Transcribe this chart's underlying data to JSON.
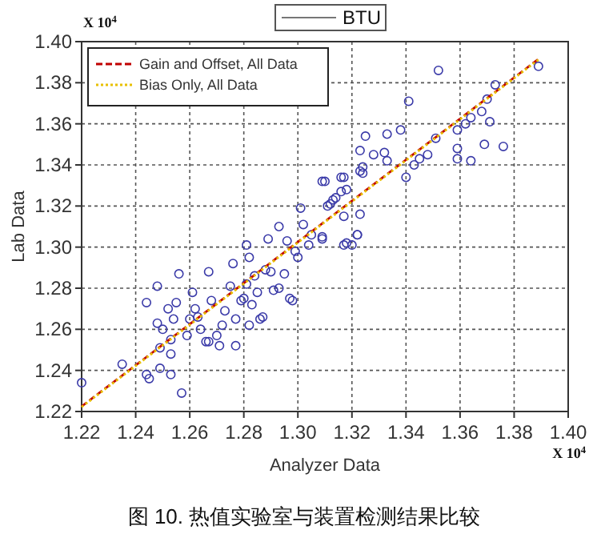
{
  "chart_data": {
    "type": "scatter",
    "title": "BTU",
    "xlabel": "Analyzer Data",
    "ylabel": "Lab Data",
    "annotations": [
      "X 10$^{4}$",
      "X 10$^{4}$",
      "图 10. 热值实验室与装置检测结果比较"
    ],
    "xlim": [
      1.22,
      1.4
    ],
    "ylim": [
      1.22,
      1.4
    ],
    "xticks": [
      1.22,
      1.24,
      1.26,
      1.28,
      {
        "value": 1.3,
        "label": "1.30"
      },
      1.32,
      1.34,
      1.36,
      1.38,
      {
        "value": 1.4,
        "label": "1.40"
      }
    ],
    "yticks": [
      1.22,
      1.24,
      1.26,
      1.28,
      {
        "value": 1.3,
        "label": "1.30"
      },
      1.32,
      1.34,
      1.36,
      1.38,
      {
        "value": 1.4,
        "label": "1.40"
      }
    ],
    "grid": true,
    "legend": "top left",
    "series": [
      {
        "color": "#3a3aa8",
        "marker": "circle",
        "x": [
          1.22,
          1.235,
          1.244,
          1.245,
          1.244,
          1.248,
          1.249,
          1.249,
          1.248,
          1.25,
          1.252,
          1.253,
          1.254,
          1.253,
          1.256,
          1.253,
          1.257,
          1.255,
          1.259,
          1.26,
          1.261,
          1.262,
          1.263,
          1.264,
          1.266,
          1.267,
          1.267,
          1.268,
          1.27,
          1.271,
          1.272,
          1.273,
          1.275,
          1.276,
          1.277,
          1.277,
          1.279,
          1.28,
          1.281,
          1.281,
          1.282,
          1.282,
          1.283,
          1.284,
          1.285,
          1.286,
          1.287,
          1.288,
          1.289,
          1.29,
          1.291,
          1.293,
          1.293,
          1.295,
          1.296,
          1.297,
          1.298,
          1.299,
          1.3,
          1.301,
          1.302,
          1.304,
          1.305,
          1.309,
          1.31,
          1.312,
          1.314,
          1.317,
          1.317,
          1.318,
          1.32,
          1.322,
          1.324,
          1.352,
          1.341,
          1.338,
          1.333,
          1.325,
          1.323,
          1.328,
          1.332,
          1.333,
          1.324,
          1.323,
          1.316,
          1.309,
          1.316,
          1.313,
          1.311,
          1.317,
          1.323,
          1.322,
          1.318,
          1.309,
          1.34,
          1.343,
          1.345,
          1.348,
          1.351,
          1.359,
          1.362,
          1.364,
          1.368,
          1.371,
          1.359,
          1.359,
          1.364,
          1.369,
          1.376,
          1.37,
          1.373,
          1.389
        ],
        "values": [
          1.234,
          1.243,
          1.273,
          1.236,
          1.238,
          1.263,
          1.251,
          1.241,
          1.281,
          1.26,
          1.27,
          1.255,
          1.265,
          1.248,
          1.287,
          1.238,
          1.229,
          1.273,
          1.257,
          1.265,
          1.278,
          1.27,
          1.266,
          1.26,
          1.254,
          1.288,
          1.254,
          1.274,
          1.257,
          1.252,
          1.262,
          1.269,
          1.281,
          1.292,
          1.252,
          1.265,
          1.274,
          1.275,
          1.301,
          1.282,
          1.262,
          1.295,
          1.272,
          1.286,
          1.278,
          1.265,
          1.266,
          1.289,
          1.304,
          1.288,
          1.279,
          1.28,
          1.31,
          1.287,
          1.303,
          1.275,
          1.274,
          1.298,
          1.295,
          1.319,
          1.311,
          1.301,
          1.306,
          1.305,
          1.332,
          1.321,
          1.324,
          1.334,
          1.301,
          1.328,
          1.301,
          1.306,
          1.336,
          1.386,
          1.371,
          1.357,
          1.355,
          1.354,
          1.347,
          1.345,
          1.346,
          1.342,
          1.339,
          1.337,
          1.334,
          1.332,
          1.327,
          1.323,
          1.32,
          1.315,
          1.316,
          1.306,
          1.302,
          1.304,
          1.334,
          1.34,
          1.343,
          1.345,
          1.353,
          1.357,
          1.36,
          1.363,
          1.366,
          1.361,
          1.348,
          1.343,
          1.342,
          1.35,
          1.349,
          1.372,
          1.379,
          1.388
        ]
      },
      {
        "type": "line",
        "name": "Gain and Offset, All Data",
        "color": "#c00000",
        "line_style": "dashed",
        "x": [
          1.22,
          1.389
        ],
        "values": [
          1.2225,
          1.3915
        ]
      },
      {
        "type": "line",
        "name": "Bias Only, All Data",
        "color": "#e8c000",
        "line_style": "dotted",
        "x": [
          1.22,
          1.389
        ],
        "values": [
          1.2222,
          1.3912
        ]
      }
    ]
  }
}
